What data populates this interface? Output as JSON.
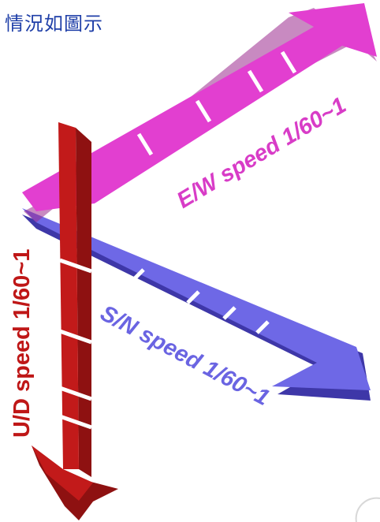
{
  "title": "情況如圖示",
  "arrows": {
    "ew": {
      "label": "E/W speed 1/60~1",
      "color": "#e23fd0"
    },
    "sn": {
      "label": "S/N speed 1/60~1",
      "color": "#6e68e6"
    },
    "ud": {
      "label": "U/D speed 1/60~1",
      "color": "#c21a1a"
    }
  }
}
